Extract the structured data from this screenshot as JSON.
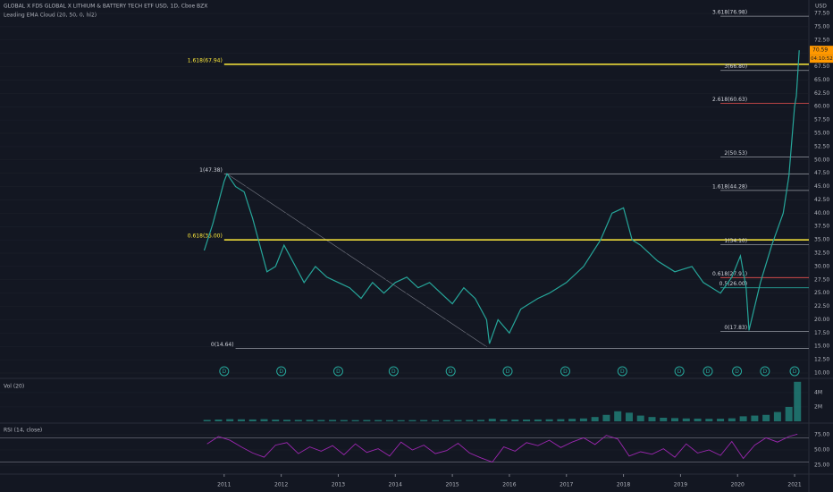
{
  "chart_data": [
    {
      "type": "line",
      "title": "GLOBAL X FDS GLOBAL X LITHIUM & BATTERY TECH ETF USD, 1D, Cboe BZX",
      "subtitle": "Leading EMA Cloud (20, 50, 0, hl2)",
      "y_axis_label": "USD",
      "last_value_label": "70.59",
      "countdown": "04:10:52",
      "xlim": [
        2007.07,
        2021.25
      ],
      "ylim": [
        10,
        77.5
      ],
      "yticks": [
        {
          "value": 10,
          "label": "10.00"
        },
        {
          "value": 12.5,
          "label": "12.50"
        },
        {
          "value": 15,
          "label": "15.00"
        },
        {
          "value": 17.5,
          "label": "17.50"
        },
        {
          "value": 20,
          "label": "20.00"
        },
        {
          "value": 22.5,
          "label": "22.50"
        },
        {
          "value": 25,
          "label": "25.00"
        },
        {
          "value": 27.5,
          "label": "27.50"
        },
        {
          "value": 30,
          "label": "30.00"
        },
        {
          "value": 32.5,
          "label": "32.50"
        },
        {
          "value": 35,
          "label": "35.00"
        },
        {
          "value": 37.5,
          "label": "37.50"
        },
        {
          "value": 40,
          "label": "40.00"
        },
        {
          "value": 42.5,
          "label": "42.50"
        },
        {
          "value": 45,
          "label": "45.00"
        },
        {
          "value": 47.5,
          "label": "47.50"
        },
        {
          "value": 50,
          "label": "50.00"
        },
        {
          "value": 52.5,
          "label": "52.50"
        },
        {
          "value": 55,
          "label": "55.00"
        },
        {
          "value": 57.5,
          "label": "57.50"
        },
        {
          "value": 60,
          "label": "60.00"
        },
        {
          "value": 62.5,
          "label": "62.50"
        },
        {
          "value": 65,
          "label": "65.00"
        },
        {
          "value": 67.5,
          "label": "67.50"
        },
        {
          "value": 70,
          "label": "70.00"
        },
        {
          "value": 72.5,
          "label": "72.50"
        },
        {
          "value": 75,
          "label": "75.00"
        },
        {
          "value": 77.5,
          "label": "77.50"
        }
      ],
      "series": [
        {
          "name": "Price",
          "color": "#26a69a",
          "x": [
            2010.65,
            2010.8,
            2011.0,
            2011.05,
            2011.2,
            2011.35,
            2011.5,
            2011.6,
            2011.75,
            2011.9,
            2012.05,
            2012.2,
            2012.4,
            2012.6,
            2012.8,
            2013.0,
            2013.2,
            2013.4,
            2013.6,
            2013.8,
            2014.0,
            2014.2,
            2014.4,
            2014.6,
            2014.8,
            2015.0,
            2015.2,
            2015.4,
            2015.6,
            2015.65,
            2015.8,
            2016.0,
            2016.2,
            2016.5,
            2016.7,
            2017.0,
            2017.3,
            2017.6,
            2017.8,
            2018.0,
            2018.15,
            2018.3,
            2018.6,
            2018.9,
            2019.2,
            2019.4,
            2019.7,
            2019.9,
            2020.05,
            2020.15,
            2020.2,
            2020.4,
            2020.6,
            2020.8,
            2020.9,
            2021.0,
            2021.03,
            2021.08
          ],
          "values": [
            33,
            38,
            46,
            47.4,
            45,
            44,
            39,
            35,
            29,
            30,
            34,
            31,
            27,
            30,
            28,
            27,
            26,
            24,
            27,
            25,
            27,
            28,
            26,
            27,
            25,
            23,
            26,
            24,
            20,
            15.5,
            20,
            17.5,
            22,
            24,
            25,
            27,
            30,
            35,
            40,
            41,
            35,
            34,
            31,
            29,
            30,
            27,
            25,
            28,
            32,
            26,
            18,
            27,
            34,
            40,
            47,
            60,
            62,
            70.59
          ]
        }
      ],
      "annotations": [
        {
          "label": "3.618(76.98)",
          "value": 76.98,
          "from": 2019.7,
          "color": "#9598a1"
        },
        {
          "label": "1.618(67.94)",
          "value": 67.94,
          "from": 2011.0,
          "color": "#ffeb3b"
        },
        {
          "label": "3(66.80)",
          "value": 66.8,
          "from": 2019.7,
          "color": "#9598a1"
        },
        {
          "label": "2.618(60.63)",
          "value": 60.63,
          "from": 2019.7,
          "color": "#ef5350"
        },
        {
          "label": "2(50.53)",
          "value": 50.53,
          "from": 2019.7,
          "color": "#9598a1"
        },
        {
          "label": "1(47.38)",
          "value": 47.38,
          "from": 2011.0,
          "color": "#9598a1"
        },
        {
          "label": "1.618(44.28)",
          "value": 44.28,
          "from": 2019.7,
          "color": "#9598a1"
        },
        {
          "label": "0.618(35.00)",
          "value": 35.0,
          "from": 2011.0,
          "color": "#ffeb3b"
        },
        {
          "label": "1(34.10)",
          "value": 34.1,
          "from": 2019.7,
          "color": "#9598a1"
        },
        {
          "label": "0.618(27.91)",
          "value": 27.91,
          "from": 2019.7,
          "color": "#ef5350"
        },
        {
          "label": "0.5(26.00)",
          "value": 26.0,
          "from": 2019.7,
          "color": "#26a69a"
        },
        {
          "label": "0(17.83)",
          "value": 17.83,
          "from": 2019.7,
          "color": "#9598a1"
        },
        {
          "label": "0(14.64)",
          "value": 14.64,
          "from": 2011.2,
          "color": "#9598a1"
        }
      ],
      "events": {
        "label": "D",
        "color": "#26a69a",
        "x": [
          2011.0,
          2012.0,
          2013.0,
          2013.97,
          2014.97,
          2015.97,
          2016.98,
          2017.98,
          2018.98,
          2019.48,
          2019.99,
          2020.48,
          2021.0
        ]
      }
    },
    {
      "type": "bar",
      "title": "Vol (20)",
      "color": "#26a69a",
      "xlim": [
        2007.07,
        2021.25
      ],
      "ylim": [
        0,
        5600000
      ],
      "yticks": [
        {
          "value": 2000000,
          "label": "2M"
        },
        {
          "value": 4000000,
          "label": "4M"
        }
      ],
      "x": [
        2010.7,
        2010.9,
        2011.1,
        2011.3,
        2011.5,
        2011.7,
        2011.9,
        2012.1,
        2012.3,
        2012.5,
        2012.7,
        2012.9,
        2013.1,
        2013.3,
        2013.5,
        2013.7,
        2013.9,
        2014.1,
        2014.3,
        2014.5,
        2014.7,
        2014.9,
        2015.1,
        2015.3,
        2015.5,
        2015.7,
        2015.9,
        2016.1,
        2016.3,
        2016.5,
        2016.7,
        2016.9,
        2017.1,
        2017.3,
        2017.5,
        2017.7,
        2017.9,
        2018.1,
        2018.3,
        2018.5,
        2018.7,
        2018.9,
        2019.1,
        2019.3,
        2019.5,
        2019.7,
        2019.9,
        2020.1,
        2020.3,
        2020.5,
        2020.7,
        2020.9,
        2021.05
      ],
      "values": [
        200000,
        250000,
        300000,
        280000,
        260000,
        300000,
        240000,
        220000,
        200000,
        210000,
        190000,
        200000,
        180000,
        170000,
        190000,
        180000,
        170000,
        160000,
        170000,
        180000,
        160000,
        170000,
        180000,
        190000,
        200000,
        350000,
        260000,
        240000,
        250000,
        260000,
        280000,
        300000,
        350000,
        400000,
        600000,
        900000,
        1400000,
        1200000,
        800000,
        600000,
        500000,
        450000,
        400000,
        380000,
        350000,
        360000,
        420000,
        700000,
        800000,
        900000,
        1300000,
        2000000,
        5500000
      ]
    },
    {
      "type": "line",
      "title": "RSI (14, close)",
      "color": "#9c27b0",
      "xlim": [
        2007.07,
        2021.25
      ],
      "ylim": [
        23.5,
        91.2
      ],
      "bands": [
        30,
        70
      ],
      "yticks": [
        {
          "value": 25,
          "label": "25.00"
        },
        {
          "value": 50,
          "label": "50.00"
        },
        {
          "value": 75,
          "label": "75.00"
        }
      ],
      "xticks": [
        2011,
        2012,
        2013,
        2014,
        2015,
        2016,
        2017,
        2018,
        2019,
        2020,
        2021
      ],
      "x": [
        2010.7,
        2010.9,
        2011.1,
        2011.3,
        2011.5,
        2011.7,
        2011.9,
        2012.1,
        2012.3,
        2012.5,
        2012.7,
        2012.9,
        2013.1,
        2013.3,
        2013.5,
        2013.7,
        2013.9,
        2014.1,
        2014.3,
        2014.5,
        2014.7,
        2014.9,
        2015.1,
        2015.3,
        2015.5,
        2015.7,
        2015.9,
        2016.1,
        2016.3,
        2016.5,
        2016.7,
        2016.9,
        2017.1,
        2017.3,
        2017.5,
        2017.7,
        2017.9,
        2018.1,
        2018.3,
        2018.5,
        2018.7,
        2018.9,
        2019.1,
        2019.3,
        2019.5,
        2019.7,
        2019.9,
        2020.1,
        2020.3,
        2020.5,
        2020.7,
        2020.9,
        2021.05
      ],
      "values": [
        60,
        72,
        66,
        55,
        45,
        38,
        58,
        62,
        44,
        55,
        48,
        57,
        42,
        60,
        46,
        52,
        40,
        63,
        50,
        58,
        44,
        49,
        61,
        45,
        37,
        30,
        55,
        48,
        62,
        57,
        66,
        54,
        63,
        70,
        59,
        74,
        68,
        40,
        47,
        43,
        52,
        38,
        60,
        45,
        50,
        41,
        64,
        36,
        58,
        70,
        63,
        72,
        76
      ]
    }
  ]
}
